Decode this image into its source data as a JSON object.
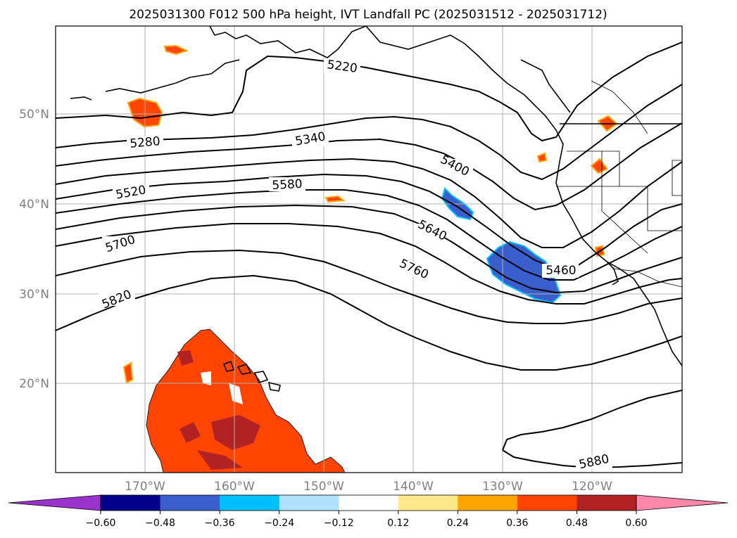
{
  "title": "2025031300 F012 500 hPa height, IVT Landfall PC (2025031512 - 2025031712)",
  "map": {
    "lon_range": [
      -180,
      -110
    ],
    "lat_range": [
      10,
      60
    ],
    "lat_ticks": [
      {
        "lat": 50,
        "label": "50°N"
      },
      {
        "lat": 40,
        "label": "40°N"
      },
      {
        "lat": 30,
        "label": "30°N"
      },
      {
        "lat": 20,
        "label": "20°N"
      }
    ],
    "lon_ticks": [
      {
        "lon": -170,
        "label": "170°W"
      },
      {
        "lon": -160,
        "label": "160°W"
      },
      {
        "lon": -150,
        "label": "150°W"
      },
      {
        "lon": -140,
        "label": "140°W"
      },
      {
        "lon": -130,
        "label": "130°W"
      },
      {
        "lon": -120,
        "label": "120°W"
      }
    ],
    "grid": true,
    "contour_labels": [
      "5220",
      "5280",
      "5340",
      "5400",
      "5460",
      "5520",
      "5580",
      "5640",
      "5700",
      "5760",
      "5820",
      "5880"
    ]
  },
  "colorbar": {
    "ticks": [
      "−0.60",
      "−0.48",
      "−0.36",
      "−0.24",
      "−0.12",
      "0.12",
      "0.24",
      "0.36",
      "0.48",
      "0.60"
    ],
    "colors": [
      "#9933cc",
      "#00008b",
      "#3a5fcd",
      "#00bfff",
      "#b0e2ff",
      "#ffffff",
      "#ffe88a",
      "#ffa500",
      "#ff4500",
      "#b22222",
      "#ff88aa"
    ]
  }
}
